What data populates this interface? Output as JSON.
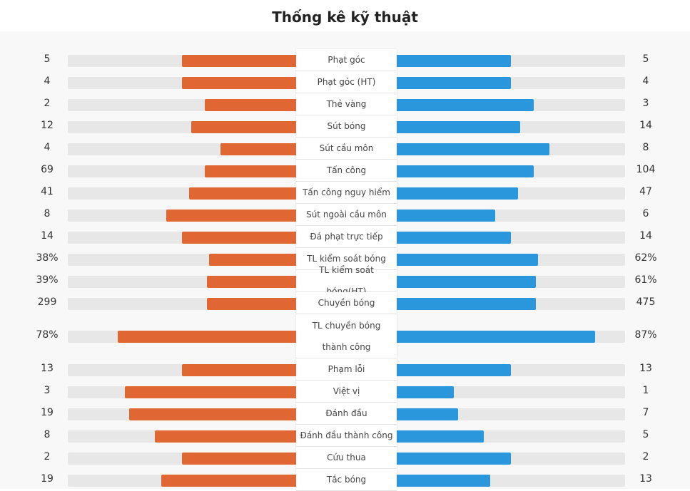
{
  "title": "Thống kê kỹ thuật",
  "colors": {
    "home": "#e06734",
    "away": "#2a96dc",
    "track": "#e7e7e7"
  },
  "stats": [
    {
      "label": "Phạt góc",
      "home": "5",
      "away": "5",
      "home_ratio": 0.5,
      "away_ratio": 0.5
    },
    {
      "label": "Phạt góc (HT)",
      "home": "4",
      "away": "4",
      "home_ratio": 0.5,
      "away_ratio": 0.5
    },
    {
      "label": "Thẻ vàng",
      "home": "2",
      "away": "3",
      "home_ratio": 0.4,
      "away_ratio": 0.6
    },
    {
      "label": "Sút bóng",
      "home": "12",
      "away": "14",
      "home_ratio": 0.46,
      "away_ratio": 0.54
    },
    {
      "label": "Sút cầu môn",
      "home": "4",
      "away": "8",
      "home_ratio": 0.33,
      "away_ratio": 0.67
    },
    {
      "label": "Tấn công",
      "home": "69",
      "away": "104",
      "home_ratio": 0.4,
      "away_ratio": 0.6
    },
    {
      "label": "Tấn công nguy hiểm",
      "home": "41",
      "away": "47",
      "home_ratio": 0.47,
      "away_ratio": 0.53
    },
    {
      "label": "Sút ngoài cầu môn",
      "home": "8",
      "away": "6",
      "home_ratio": 0.57,
      "away_ratio": 0.43
    },
    {
      "label": "Đá phạt trực tiếp",
      "home": "14",
      "away": "14",
      "home_ratio": 0.5,
      "away_ratio": 0.5
    },
    {
      "label": "TL kiểm soát bóng",
      "home": "38%",
      "away": "62%",
      "home_ratio": 0.38,
      "away_ratio": 0.62
    },
    {
      "label": "TL kiểm soát bóng(HT)",
      "home": "39%",
      "away": "61%",
      "home_ratio": 0.39,
      "away_ratio": 0.61
    },
    {
      "label": "Chuyền bóng",
      "home": "299",
      "away": "475",
      "home_ratio": 0.39,
      "away_ratio": 0.61
    },
    {
      "label": "TL chuyền bóng thành công",
      "home": "78%",
      "away": "87%",
      "home_ratio": 0.78,
      "away_ratio": 0.87,
      "tall": true
    },
    {
      "label": "Phạm lỗi",
      "home": "13",
      "away": "13",
      "home_ratio": 0.5,
      "away_ratio": 0.5
    },
    {
      "label": "Việt vị",
      "home": "3",
      "away": "1",
      "home_ratio": 0.75,
      "away_ratio": 0.25
    },
    {
      "label": "Đánh đầu",
      "home": "19",
      "away": "7",
      "home_ratio": 0.73,
      "away_ratio": 0.27
    },
    {
      "label": "Đánh đầu thành công",
      "home": "8",
      "away": "5",
      "home_ratio": 0.62,
      "away_ratio": 0.38
    },
    {
      "label": "Cứu thua",
      "home": "2",
      "away": "2",
      "home_ratio": 0.5,
      "away_ratio": 0.5
    },
    {
      "label": "Tắc bóng",
      "home": "19",
      "away": "13",
      "home_ratio": 0.59,
      "away_ratio": 0.41
    }
  ]
}
